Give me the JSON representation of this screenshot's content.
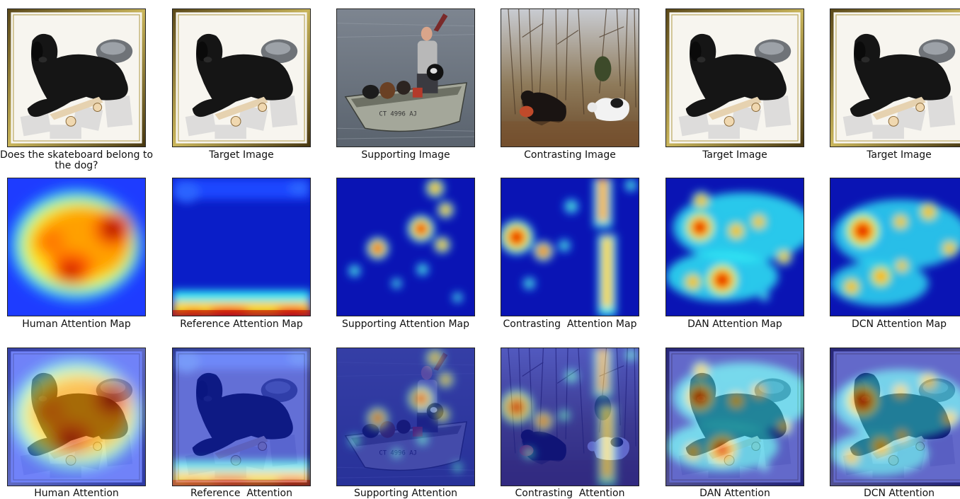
{
  "row1": {
    "captions": [
      "Does the skateboard belong to the dog?",
      "Target Image",
      "Supporting Image",
      "Contrasting Image",
      "Target Image",
      "Target Image"
    ]
  },
  "row2": {
    "captions": [
      "Human Attention Map",
      "Reference Attention Map",
      "Supporting Attention Map",
      "Contrasting  Attention Map",
      "DAN Attention Map",
      "DCN Attention Map"
    ]
  },
  "row3": {
    "captions": [
      "Human Attention",
      "Reference  Attention",
      "Supporting Attention",
      "Contrasting  Attention",
      "DAN Attention",
      "DCN Attention"
    ]
  },
  "colors": {
    "heat_bg": "#00008f",
    "heat_blue": "#1e3cff",
    "heat_cyan": "#2ee8f5",
    "heat_yellow": "#f5f01e",
    "heat_orange": "#ff7a00",
    "heat_red": "#c80000"
  }
}
